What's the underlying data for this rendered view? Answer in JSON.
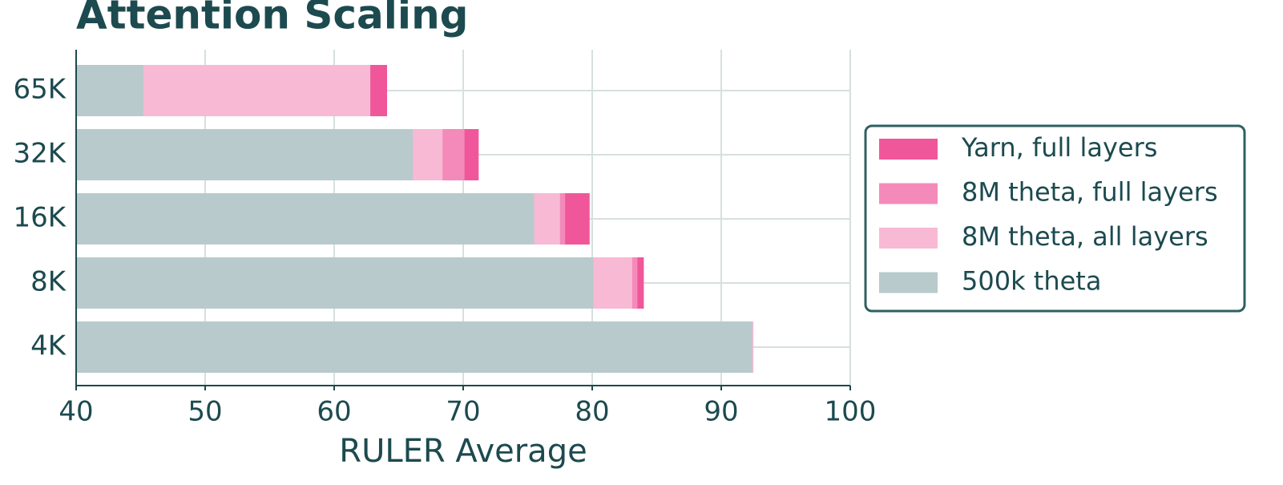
{
  "chart_data": {
    "type": "barh",
    "title": "Attention Scaling",
    "xlabel": "RULER Average",
    "categories": [
      "65K",
      "32K",
      "16K",
      "8K",
      "4K"
    ],
    "series": [
      {
        "name": "Yarn, full layers",
        "color": "#f0579a",
        "values": [
          64.1,
          71.2,
          79.8,
          84.0,
          92.4
        ]
      },
      {
        "name": "8M theta, full layers",
        "color": "#f48ab9",
        "values": [
          62.5,
          70.1,
          77.9,
          83.5,
          92.4
        ]
      },
      {
        "name": "8M theta, all layers",
        "color": "#f8b9d5",
        "values": [
          62.8,
          68.4,
          77.5,
          83.1,
          92.5
        ]
      },
      {
        "name": "500k theta",
        "color": "#b9cacc",
        "values": [
          45.2,
          66.1,
          75.5,
          80.1,
          92.4
        ]
      }
    ],
    "xlim": [
      40,
      100
    ],
    "xticks": [
      40,
      50,
      60,
      70,
      80,
      90,
      100
    ],
    "grid": true,
    "legend": "right"
  }
}
